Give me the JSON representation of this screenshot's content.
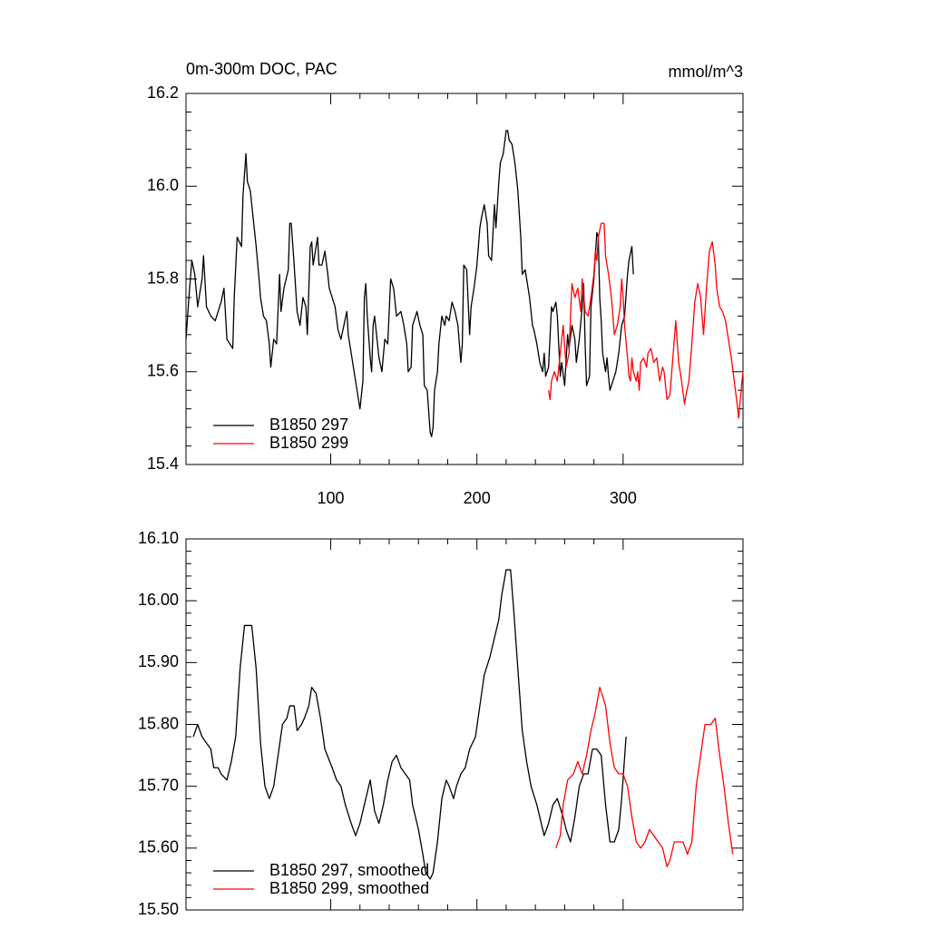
{
  "chart_data": [
    {
      "type": "line",
      "title": "0m-300m DOC, PAC",
      "units_label": "mmol/m^3",
      "xlim": [
        1,
        382
      ],
      "xticks": [
        100,
        200,
        300
      ],
      "show_xtick_labels": true,
      "ylim": [
        15.4,
        16.2
      ],
      "yticks": [
        15.4,
        15.6,
        15.8,
        {
          "value": 16,
          "label": "16.0"
        },
        16.2
      ],
      "legend": "lower left",
      "series": [
        {
          "name": "B1850 297",
          "color": "#000000",
          "x": [
            1,
            3,
            5,
            7,
            9,
            12,
            13,
            15,
            18,
            21,
            25,
            27,
            29,
            33,
            34,
            36,
            39,
            40,
            42,
            43,
            45,
            47,
            49,
            51,
            52,
            54,
            56,
            58,
            59,
            61,
            63,
            65,
            66,
            68,
            71,
            72,
            73,
            75,
            77,
            79,
            81,
            83,
            84,
            86,
            87,
            88,
            91,
            92,
            94,
            96,
            98,
            99,
            101,
            103,
            105,
            107,
            109,
            111,
            112,
            114,
            116,
            118,
            120,
            122,
            123,
            124,
            125,
            127,
            128,
            129,
            130,
            133,
            135,
            137,
            139,
            141,
            143,
            145,
            148,
            150,
            152,
            153,
            155,
            156,
            158,
            159,
            161,
            163,
            164,
            166,
            168,
            169,
            170,
            171,
            173,
            174,
            176,
            178,
            179,
            181,
            183,
            185,
            187,
            189,
            190,
            191,
            193,
            195,
            196,
            198,
            200,
            202,
            203,
            205,
            207,
            208,
            210,
            212,
            213,
            215,
            216,
            218,
            220,
            221,
            222,
            224,
            226,
            228,
            230,
            231,
            233,
            234,
            236,
            238,
            239,
            241,
            243,
            245,
            246,
            247,
            249,
            251,
            252,
            254,
            255,
            257,
            258,
            260,
            262,
            263,
            265,
            267,
            268,
            270,
            272,
            273,
            274,
            275,
            277,
            278,
            280,
            282,
            283,
            284,
            285,
            286,
            288,
            289,
            290,
            291,
            293,
            295,
            297,
            299,
            301,
            303,
            304,
            306,
            307
          ],
          "values": [
            15.67,
            15.76,
            15.84,
            15.81,
            15.74,
            15.8,
            15.85,
            15.74,
            15.72,
            15.71,
            15.75,
            15.78,
            15.67,
            15.65,
            15.76,
            15.89,
            15.87,
            15.98,
            16.07,
            16.01,
            15.99,
            15.93,
            15.87,
            15.8,
            15.76,
            15.72,
            15.71,
            15.66,
            15.61,
            15.67,
            15.66,
            15.81,
            15.73,
            15.78,
            15.82,
            15.92,
            15.92,
            15.83,
            15.73,
            15.7,
            15.76,
            15.74,
            15.68,
            15.87,
            15.88,
            15.83,
            15.89,
            15.83,
            15.83,
            15.86,
            15.81,
            15.78,
            15.76,
            15.74,
            15.69,
            15.67,
            15.7,
            15.73,
            15.68,
            15.64,
            15.6,
            15.56,
            15.52,
            15.58,
            15.76,
            15.79,
            15.72,
            15.63,
            15.6,
            15.7,
            15.72,
            15.63,
            15.6,
            15.67,
            15.66,
            15.8,
            15.78,
            15.72,
            15.73,
            15.7,
            15.66,
            15.6,
            15.61,
            15.7,
            15.72,
            15.73,
            15.7,
            15.68,
            15.57,
            15.56,
            15.47,
            15.46,
            15.48,
            15.56,
            15.6,
            15.66,
            15.72,
            15.7,
            15.72,
            15.71,
            15.75,
            15.73,
            15.7,
            15.62,
            15.66,
            15.83,
            15.82,
            15.68,
            15.74,
            15.78,
            15.83,
            15.91,
            15.93,
            15.96,
            15.92,
            15.85,
            15.84,
            15.96,
            15.91,
            16.01,
            16.05,
            16.07,
            16.12,
            16.12,
            16.1,
            16.09,
            16.05,
            15.99,
            15.89,
            15.81,
            15.82,
            15.8,
            15.76,
            15.7,
            15.69,
            15.66,
            15.62,
            15.6,
            15.64,
            15.59,
            15.61,
            15.74,
            15.73,
            15.75,
            15.72,
            15.59,
            15.62,
            15.57,
            15.68,
            15.65,
            15.7,
            15.67,
            15.62,
            15.67,
            15.74,
            15.79,
            15.66,
            15.57,
            15.59,
            15.74,
            15.8,
            15.9,
            15.89,
            15.76,
            15.71,
            15.64,
            15.6,
            15.63,
            15.59,
            15.56,
            15.58,
            15.6,
            15.64,
            15.7,
            15.72,
            15.81,
            15.84,
            15.87,
            15.81
          ]
        },
        {
          "name": "B1850 299",
          "color": "#ff0000",
          "x": [
            249,
            250,
            251,
            253,
            255,
            257,
            259,
            261,
            263,
            264,
            265,
            267,
            269,
            271,
            272,
            274,
            276,
            278,
            280,
            281,
            282,
            283,
            285,
            287,
            288,
            290,
            292,
            294,
            295,
            296,
            298,
            299,
            300,
            301,
            303,
            304,
            305,
            306,
            307,
            309,
            310,
            311,
            312,
            314,
            316,
            317,
            319,
            321,
            323,
            325,
            327,
            328,
            330,
            332,
            334,
            336,
            338,
            340,
            342,
            343,
            345,
            347,
            349,
            351,
            353,
            355,
            357,
            359,
            361,
            363,
            364,
            366,
            368,
            370,
            372,
            374,
            376,
            378,
            379,
            381,
            382
          ],
          "values": [
            15.56,
            15.54,
            15.58,
            15.6,
            15.58,
            15.64,
            15.7,
            15.61,
            15.64,
            15.72,
            15.79,
            15.76,
            15.78,
            15.73,
            15.8,
            15.73,
            15.72,
            15.76,
            15.81,
            15.86,
            15.84,
            15.89,
            15.92,
            15.92,
            15.85,
            15.81,
            15.76,
            15.68,
            15.69,
            15.7,
            15.74,
            15.8,
            15.76,
            15.7,
            15.63,
            15.59,
            15.58,
            15.63,
            15.6,
            15.58,
            15.6,
            15.56,
            15.62,
            15.63,
            15.61,
            15.64,
            15.65,
            15.62,
            15.63,
            15.58,
            15.61,
            15.6,
            15.54,
            15.55,
            15.63,
            15.71,
            15.62,
            15.58,
            15.53,
            15.55,
            15.58,
            15.66,
            15.75,
            15.79,
            15.76,
            15.68,
            15.78,
            15.86,
            15.88,
            15.83,
            15.78,
            15.74,
            15.73,
            15.71,
            15.67,
            15.63,
            15.58,
            15.53,
            15.5,
            15.57,
            15.6
          ]
        }
      ]
    },
    {
      "type": "line",
      "xlim": [
        1,
        382
      ],
      "xticks": [
        100,
        200,
        300
      ],
      "show_xtick_labels": false,
      "ylim": [
        15.5,
        16.1
      ],
      "yticks": [
        {
          "value": 15.5,
          "label": "15.50"
        },
        {
          "value": 15.6,
          "label": "15.60"
        },
        {
          "value": 15.7,
          "label": "15.70"
        },
        {
          "value": 15.8,
          "label": "15.80"
        },
        {
          "value": 15.9,
          "label": "15.90"
        },
        {
          "value": 16,
          "label": "16.00"
        },
        {
          "value": 16.1,
          "label": "16.10"
        }
      ],
      "legend": "lower left",
      "series": [
        {
          "name": "B1850 297, smoothed",
          "color": "#000000",
          "x": [
            6,
            9,
            12,
            15,
            18,
            20,
            23,
            25,
            29,
            32,
            35,
            38,
            41,
            46,
            49,
            52,
            55,
            58,
            61,
            64,
            67,
            70,
            72,
            75,
            77,
            80,
            82,
            85,
            87,
            90,
            93,
            96,
            101,
            104,
            107,
            110,
            114,
            117,
            120,
            123,
            127,
            130,
            133,
            136,
            139,
            142,
            145,
            148,
            151,
            154,
            156,
            160,
            163,
            165,
            168,
            170,
            173,
            176,
            179,
            181,
            184,
            186,
            189,
            192,
            195,
            199,
            202,
            205,
            209,
            211,
            215,
            217,
            220,
            223,
            225,
            228,
            231,
            234,
            237,
            241,
            244,
            246,
            249,
            252,
            255,
            259,
            261,
            264,
            267,
            270,
            273,
            276,
            279,
            282,
            285,
            288,
            291,
            294,
            297,
            299,
            302
          ],
          "values": [
            15.78,
            15.8,
            15.78,
            15.77,
            15.76,
            15.73,
            15.73,
            15.72,
            15.71,
            15.74,
            15.78,
            15.89,
            15.96,
            15.96,
            15.89,
            15.77,
            15.7,
            15.68,
            15.7,
            15.75,
            15.8,
            15.81,
            15.83,
            15.83,
            15.79,
            15.8,
            15.81,
            15.83,
            15.86,
            15.85,
            15.81,
            15.76,
            15.73,
            15.71,
            15.7,
            15.67,
            15.64,
            15.62,
            15.64,
            15.67,
            15.71,
            15.66,
            15.64,
            15.67,
            15.71,
            15.74,
            15.75,
            15.73,
            15.72,
            15.71,
            15.67,
            15.63,
            15.59,
            15.56,
            15.55,
            15.56,
            15.61,
            15.68,
            15.71,
            15.7,
            15.68,
            15.7,
            15.72,
            15.73,
            15.76,
            15.78,
            15.83,
            15.88,
            15.91,
            15.93,
            15.97,
            16.01,
            16.05,
            16.05,
            15.99,
            15.89,
            15.79,
            15.74,
            15.7,
            15.67,
            15.64,
            15.62,
            15.64,
            15.67,
            15.68,
            15.65,
            15.63,
            15.61,
            15.65,
            15.7,
            15.72,
            15.72,
            15.76,
            15.76,
            15.75,
            15.67,
            15.61,
            15.61,
            15.63,
            15.68,
            15.78
          ]
        },
        {
          "name": "B1850 299, smoothed",
          "color": "#ff0000",
          "x": [
            254,
            257,
            259,
            262,
            266,
            269,
            272,
            275,
            278,
            281,
            284,
            288,
            291,
            294,
            297,
            300,
            303,
            306,
            309,
            312,
            315,
            318,
            321,
            324,
            327,
            330,
            332,
            335,
            338,
            341,
            344,
            347,
            350,
            353,
            356,
            360,
            363,
            366,
            369,
            372,
            375
          ],
          "values": [
            15.6,
            15.62,
            15.67,
            15.71,
            15.72,
            15.74,
            15.72,
            15.75,
            15.79,
            15.82,
            15.86,
            15.83,
            15.77,
            15.73,
            15.72,
            15.72,
            15.7,
            15.65,
            15.61,
            15.6,
            15.61,
            15.63,
            15.62,
            15.61,
            15.6,
            15.57,
            15.58,
            15.61,
            15.61,
            15.61,
            15.59,
            15.61,
            15.7,
            15.75,
            15.8,
            15.8,
            15.81,
            15.75,
            15.7,
            15.64,
            15.59
          ]
        }
      ]
    }
  ]
}
